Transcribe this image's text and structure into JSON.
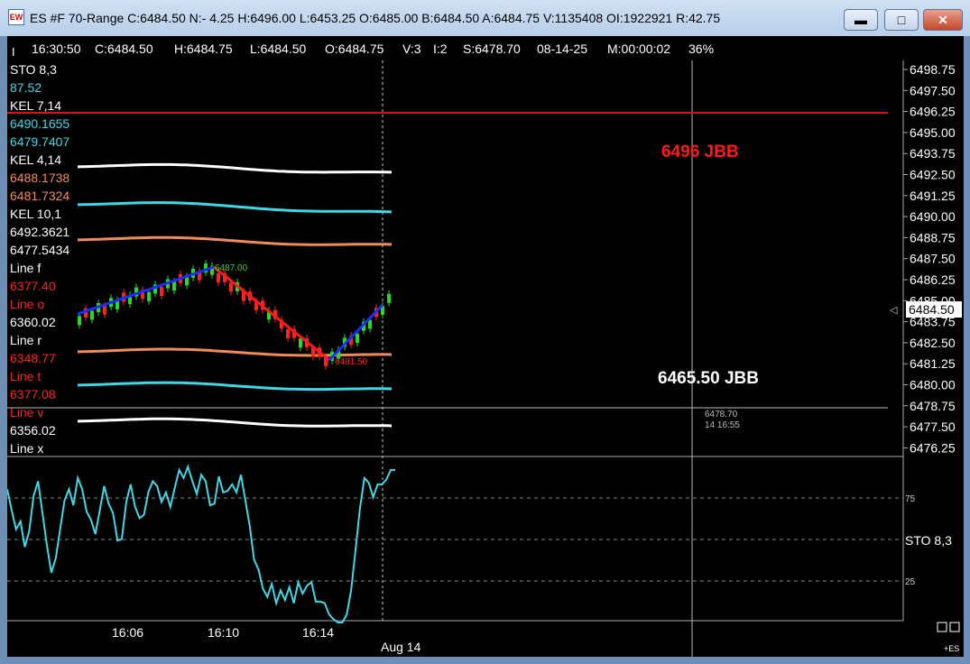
{
  "window": {
    "title": "ES #F 70-Range C:6484.50 N:- 4.25 H:6496.00 L:6453.25 O:6485.00 B:6484.50 A:6484.75 V:1135408 OI:1922921 R:42.75",
    "icon_label": "EW",
    "minimize_icon": "minimize-icon",
    "maximize_icon": "maximize-icon",
    "close_icon": "close-icon"
  },
  "header": {
    "fields": [
      "16:30:50",
      "C:6484.50",
      "H:6484.75",
      "L:6484.50",
      "O:6484.75",
      "V:3",
      "I:2",
      "S:6478.70",
      "08-14-25",
      "M:00:00:02",
      "36%"
    ]
  },
  "indicators": [
    {
      "text": "STO  8,3",
      "color": "#ffffff"
    },
    {
      "text": " 87.52",
      "color": "#3fd8e6"
    },
    {
      "text": "KEL  7,14",
      "color": "#ffffff"
    },
    {
      "text": "6490.1655",
      "color": "#3fd8e6"
    },
    {
      "text": "6479.7407",
      "color": "#3fd8e6"
    },
    {
      "text": "KEL  4,14",
      "color": "#ffffff"
    },
    {
      "text": "6488.1738",
      "color": "#f08c5a"
    },
    {
      "text": "6481.7324",
      "color": "#f08c5a"
    },
    {
      "text": "KEL  10,1",
      "color": "#ffffff"
    },
    {
      "text": "6492.3621",
      "color": "#ffffff"
    },
    {
      "text": "6477.5434",
      "color": "#ffffff"
    },
    {
      "text": "Line    f",
      "color": "#ffffff"
    },
    {
      "text": "6377.40",
      "color": "#ff2020"
    },
    {
      "text": "Line    o",
      "color": "#ff2020"
    },
    {
      "text": "6360.02",
      "color": "#ffffff"
    },
    {
      "text": "Line    r",
      "color": "#ffffff"
    },
    {
      "text": "6348.77",
      "color": "#ff2020"
    },
    {
      "text": "Line    t",
      "color": "#ff2020"
    },
    {
      "text": "6377.08",
      "color": "#ff2020"
    },
    {
      "text": "Line    v",
      "color": "#ff2020"
    },
    {
      "text": "6356.02",
      "color": "#ffffff"
    },
    {
      "text": "Line    x",
      "color": "#ffffff"
    }
  ],
  "price_axis": [
    "6498.75",
    "6497.50",
    "6496.25",
    "6495.00",
    "6493.75",
    "6492.50",
    "6491.25",
    "6490.00",
    "6488.75",
    "6487.50",
    "6486.25",
    "6485.00",
    "6483.75",
    "6482.50",
    "6481.25",
    "6480.00",
    "6478.75",
    "6477.50",
    "6476.25"
  ],
  "current_price": "6484.50",
  "annotations": {
    "upper_label": "6496   JBB",
    "lower_label": "6465.50    JBB",
    "high_marker": "6487.00",
    "low_marker": "6481.50",
    "cursor_price": "6478.70",
    "cursor_time": "14 16:55"
  },
  "stoch": {
    "label": "STO  8,3",
    "level_high": "75",
    "level_low": "25",
    "values": [
      83,
      70,
      58,
      63,
      47,
      57,
      79,
      88,
      68,
      48,
      31,
      40,
      58,
      76,
      83,
      73,
      90,
      83,
      69,
      64,
      55,
      70,
      85,
      74,
      68,
      51,
      52,
      75,
      86,
      72,
      65,
      67,
      81,
      88,
      85,
      75,
      81,
      72,
      84,
      95,
      90,
      97,
      88,
      80,
      92,
      88,
      73,
      74,
      91,
      81,
      82,
      86,
      81,
      92,
      76,
      60,
      39,
      33,
      21,
      16,
      24,
      12,
      20,
      14,
      22,
      12,
      25,
      18,
      23,
      25,
      13,
      13,
      12,
      5,
      2,
      0,
      0,
      5,
      20,
      45,
      71,
      90,
      87,
      78,
      86,
      86,
      89,
      95,
      95
    ]
  },
  "time_axis": [
    "16:06",
    "16:10",
    "16:14",
    "Aug 14"
  ],
  "corner_label": "+ES",
  "colors": {
    "background": "#000000",
    "up_candle": "#22dd22",
    "down_candle": "#ff2222",
    "cyan": "#3fd8e6",
    "orange": "#f08c5a",
    "red_line": "#d41414",
    "blue_line": "#1a2cff",
    "zigzag_red": "#ff1a1a"
  }
}
